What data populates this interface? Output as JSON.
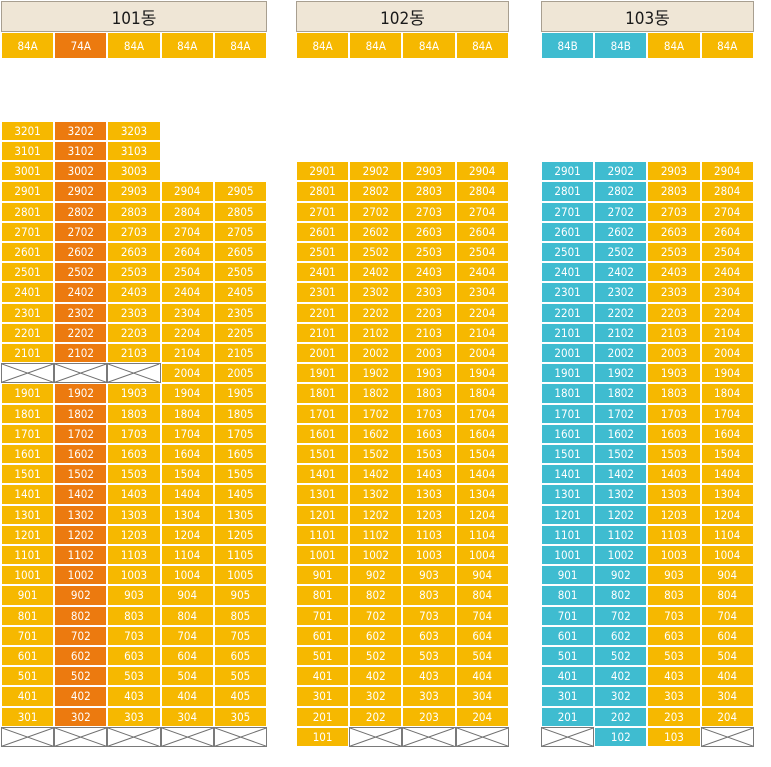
{
  "colors": {
    "default": "#f6b800",
    "type_74a": "#ec7a0f",
    "type_84b": "#3fbcd0",
    "none": "#ffffff"
  },
  "buildings": [
    {
      "name": "101동",
      "unit_types": [
        {
          "label": "84A",
          "color": "y"
        },
        {
          "label": "74A",
          "color": "o"
        },
        {
          "label": "84A",
          "color": "y"
        },
        {
          "label": "84A",
          "color": "y"
        },
        {
          "label": "84A",
          "color": "y"
        }
      ],
      "floors": [
        {
          "floor": 32,
          "units": [
            "3201",
            "3202",
            "3203",
            null,
            null
          ]
        },
        {
          "floor": 31,
          "units": [
            "3101",
            "3102",
            "3103",
            null,
            null
          ]
        },
        {
          "floor": 30,
          "units": [
            "3001",
            "3002",
            "3003",
            null,
            null
          ]
        },
        {
          "floor": 29,
          "units": [
            "2901",
            "2902",
            "2903",
            "2904",
            "2905"
          ]
        },
        {
          "floor": 28,
          "units": [
            "2801",
            "2802",
            "2803",
            "2804",
            "2805"
          ]
        },
        {
          "floor": 27,
          "units": [
            "2701",
            "2702",
            "2703",
            "2704",
            "2705"
          ]
        },
        {
          "floor": 26,
          "units": [
            "2601",
            "2602",
            "2603",
            "2604",
            "2605"
          ]
        },
        {
          "floor": 25,
          "units": [
            "2501",
            "2502",
            "2503",
            "2504",
            "2505"
          ]
        },
        {
          "floor": 24,
          "units": [
            "2401",
            "2402",
            "2403",
            "2404",
            "2405"
          ]
        },
        {
          "floor": 23,
          "units": [
            "2301",
            "2302",
            "2303",
            "2304",
            "2305"
          ]
        },
        {
          "floor": 22,
          "units": [
            "2201",
            "2202",
            "2203",
            "2204",
            "2205"
          ]
        },
        {
          "floor": 21,
          "units": [
            "2101",
            "2102",
            "2103",
            "2104",
            "2105"
          ]
        },
        {
          "floor": 20,
          "units": [
            "X",
            "X",
            "X",
            "2004",
            "2005"
          ]
        },
        {
          "floor": 19,
          "units": [
            "1901",
            "1902",
            "1903",
            "1904",
            "1905"
          ]
        },
        {
          "floor": 18,
          "units": [
            "1801",
            "1802",
            "1803",
            "1804",
            "1805"
          ]
        },
        {
          "floor": 17,
          "units": [
            "1701",
            "1702",
            "1703",
            "1704",
            "1705"
          ]
        },
        {
          "floor": 16,
          "units": [
            "1601",
            "1602",
            "1603",
            "1604",
            "1605"
          ]
        },
        {
          "floor": 15,
          "units": [
            "1501",
            "1502",
            "1503",
            "1504",
            "1505"
          ]
        },
        {
          "floor": 14,
          "units": [
            "1401",
            "1402",
            "1403",
            "1404",
            "1405"
          ]
        },
        {
          "floor": 13,
          "units": [
            "1301",
            "1302",
            "1303",
            "1304",
            "1305"
          ]
        },
        {
          "floor": 12,
          "units": [
            "1201",
            "1202",
            "1203",
            "1204",
            "1205"
          ]
        },
        {
          "floor": 11,
          "units": [
            "1101",
            "1102",
            "1103",
            "1104",
            "1105"
          ]
        },
        {
          "floor": 10,
          "units": [
            "1001",
            "1002",
            "1003",
            "1004",
            "1005"
          ]
        },
        {
          "floor": 9,
          "units": [
            "901",
            "902",
            "903",
            "904",
            "905"
          ]
        },
        {
          "floor": 8,
          "units": [
            "801",
            "802",
            "803",
            "804",
            "805"
          ]
        },
        {
          "floor": 7,
          "units": [
            "701",
            "702",
            "703",
            "704",
            "705"
          ]
        },
        {
          "floor": 6,
          "units": [
            "601",
            "602",
            "603",
            "604",
            "605"
          ]
        },
        {
          "floor": 5,
          "units": [
            "501",
            "502",
            "503",
            "504",
            "505"
          ]
        },
        {
          "floor": 4,
          "units": [
            "401",
            "402",
            "403",
            "404",
            "405"
          ]
        },
        {
          "floor": 3,
          "units": [
            "301",
            "302",
            "303",
            "304",
            "305"
          ]
        },
        {
          "floor": 2,
          "units": [
            "X",
            "X",
            "X",
            "X",
            "X"
          ]
        }
      ]
    },
    {
      "name": "102동",
      "unit_types": [
        {
          "label": "84A",
          "color": "y"
        },
        {
          "label": "84A",
          "color": "y"
        },
        {
          "label": "84A",
          "color": "y"
        },
        {
          "label": "84A",
          "color": "y"
        }
      ],
      "floors": [
        {
          "floor": 29,
          "units": [
            "2901",
            "2902",
            "2903",
            "2904"
          ]
        },
        {
          "floor": 28,
          "units": [
            "2801",
            "2802",
            "2803",
            "2804"
          ]
        },
        {
          "floor": 27,
          "units": [
            "2701",
            "2702",
            "2703",
            "2704"
          ]
        },
        {
          "floor": 26,
          "units": [
            "2601",
            "2602",
            "2603",
            "2604"
          ]
        },
        {
          "floor": 25,
          "units": [
            "2501",
            "2502",
            "2503",
            "2504"
          ]
        },
        {
          "floor": 24,
          "units": [
            "2401",
            "2402",
            "2403",
            "2404"
          ]
        },
        {
          "floor": 23,
          "units": [
            "2301",
            "2302",
            "2303",
            "2304"
          ]
        },
        {
          "floor": 22,
          "units": [
            "2201",
            "2202",
            "2203",
            "2204"
          ]
        },
        {
          "floor": 21,
          "units": [
            "2101",
            "2102",
            "2103",
            "2104"
          ]
        },
        {
          "floor": 20,
          "units": [
            "2001",
            "2002",
            "2003",
            "2004"
          ]
        },
        {
          "floor": 19,
          "units": [
            "1901",
            "1902",
            "1903",
            "1904"
          ]
        },
        {
          "floor": 18,
          "units": [
            "1801",
            "1802",
            "1803",
            "1804"
          ]
        },
        {
          "floor": 17,
          "units": [
            "1701",
            "1702",
            "1703",
            "1704"
          ]
        },
        {
          "floor": 16,
          "units": [
            "1601",
            "1602",
            "1603",
            "1604"
          ]
        },
        {
          "floor": 15,
          "units": [
            "1501",
            "1502",
            "1503",
            "1504"
          ]
        },
        {
          "floor": 14,
          "units": [
            "1401",
            "1402",
            "1403",
            "1404"
          ]
        },
        {
          "floor": 13,
          "units": [
            "1301",
            "1302",
            "1303",
            "1304"
          ]
        },
        {
          "floor": 12,
          "units": [
            "1201",
            "1202",
            "1203",
            "1204"
          ]
        },
        {
          "floor": 11,
          "units": [
            "1101",
            "1102",
            "1103",
            "1104"
          ]
        },
        {
          "floor": 10,
          "units": [
            "1001",
            "1002",
            "1003",
            "1004"
          ]
        },
        {
          "floor": 9,
          "units": [
            "901",
            "902",
            "903",
            "904"
          ]
        },
        {
          "floor": 8,
          "units": [
            "801",
            "802",
            "803",
            "804"
          ]
        },
        {
          "floor": 7,
          "units": [
            "701",
            "702",
            "703",
            "704"
          ]
        },
        {
          "floor": 6,
          "units": [
            "601",
            "602",
            "603",
            "604"
          ]
        },
        {
          "floor": 5,
          "units": [
            "501",
            "502",
            "503",
            "504"
          ]
        },
        {
          "floor": 4,
          "units": [
            "401",
            "402",
            "403",
            "404"
          ]
        },
        {
          "floor": 3,
          "units": [
            "301",
            "302",
            "303",
            "304"
          ]
        },
        {
          "floor": 2,
          "units": [
            "201",
            "202",
            "203",
            "204"
          ]
        },
        {
          "floor": 1,
          "units": [
            "101",
            "X",
            "X",
            "X"
          ]
        }
      ]
    },
    {
      "name": "103동",
      "unit_types": [
        {
          "label": "84B",
          "color": "c"
        },
        {
          "label": "84B",
          "color": "c"
        },
        {
          "label": "84A",
          "color": "y"
        },
        {
          "label": "84A",
          "color": "y"
        }
      ],
      "floors": [
        {
          "floor": 29,
          "units": [
            "2901",
            "2902",
            "2903",
            "2904"
          ]
        },
        {
          "floor": 28,
          "units": [
            "2801",
            "2802",
            "2803",
            "2804"
          ]
        },
        {
          "floor": 27,
          "units": [
            "2701",
            "2702",
            "2703",
            "2704"
          ]
        },
        {
          "floor": 26,
          "units": [
            "2601",
            "2602",
            "2603",
            "2604"
          ]
        },
        {
          "floor": 25,
          "units": [
            "2501",
            "2502",
            "2503",
            "2504"
          ]
        },
        {
          "floor": 24,
          "units": [
            "2401",
            "2402",
            "2403",
            "2404"
          ]
        },
        {
          "floor": 23,
          "units": [
            "2301",
            "2302",
            "2303",
            "2304"
          ]
        },
        {
          "floor": 22,
          "units": [
            "2201",
            "2202",
            "2203",
            "2204"
          ]
        },
        {
          "floor": 21,
          "units": [
            "2101",
            "2102",
            "2103",
            "2104"
          ]
        },
        {
          "floor": 20,
          "units": [
            "2001",
            "2002",
            "2003",
            "2004"
          ]
        },
        {
          "floor": 19,
          "units": [
            "1901",
            "1902",
            "1903",
            "1904"
          ]
        },
        {
          "floor": 18,
          "units": [
            "1801",
            "1802",
            "1803",
            "1804"
          ]
        },
        {
          "floor": 17,
          "units": [
            "1701",
            "1702",
            "1703",
            "1704"
          ]
        },
        {
          "floor": 16,
          "units": [
            "1601",
            "1602",
            "1603",
            "1604"
          ]
        },
        {
          "floor": 15,
          "units": [
            "1501",
            "1502",
            "1503",
            "1504"
          ]
        },
        {
          "floor": 14,
          "units": [
            "1401",
            "1402",
            "1403",
            "1404"
          ]
        },
        {
          "floor": 13,
          "units": [
            "1301",
            "1302",
            "1303",
            "1304"
          ]
        },
        {
          "floor": 12,
          "units": [
            "1201",
            "1202",
            "1203",
            "1204"
          ]
        },
        {
          "floor": 11,
          "units": [
            "1101",
            "1102",
            "1103",
            "1104"
          ]
        },
        {
          "floor": 10,
          "units": [
            "1001",
            "1002",
            "1003",
            "1004"
          ]
        },
        {
          "floor": 9,
          "units": [
            "901",
            "902",
            "903",
            "904"
          ]
        },
        {
          "floor": 8,
          "units": [
            "801",
            "802",
            "803",
            "804"
          ]
        },
        {
          "floor": 7,
          "units": [
            "701",
            "702",
            "703",
            "704"
          ]
        },
        {
          "floor": 6,
          "units": [
            "601",
            "602",
            "603",
            "604"
          ]
        },
        {
          "floor": 5,
          "units": [
            "501",
            "502",
            "503",
            "504"
          ]
        },
        {
          "floor": 4,
          "units": [
            "401",
            "402",
            "403",
            "404"
          ]
        },
        {
          "floor": 3,
          "units": [
            "301",
            "302",
            "303",
            "304"
          ]
        },
        {
          "floor": 2,
          "units": [
            "201",
            "202",
            "203",
            "204"
          ]
        },
        {
          "floor": 1,
          "units": [
            "X",
            "102",
            "103",
            "X"
          ]
        }
      ]
    }
  ]
}
